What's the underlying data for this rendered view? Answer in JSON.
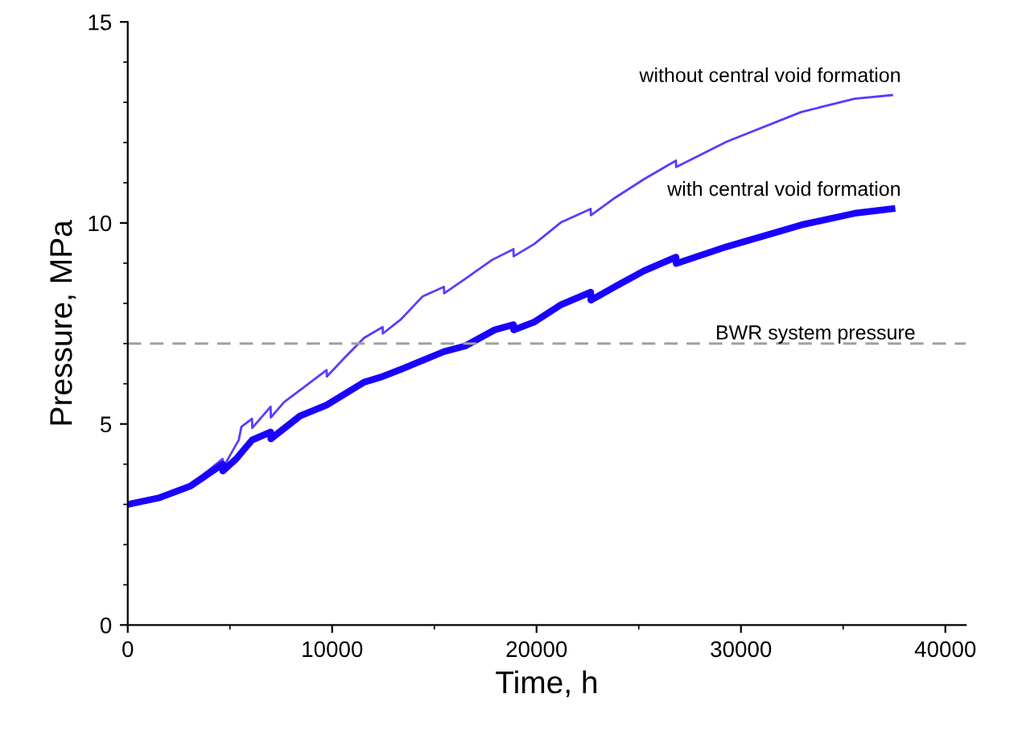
{
  "chart_data": {
    "type": "line",
    "xlabel": "Time, h",
    "ylabel": "Pressure, MPa",
    "xlim": [
      0,
      41000
    ],
    "xticks": [
      0,
      10000,
      20000,
      30000,
      40000
    ],
    "ylim": [
      0,
      15
    ],
    "yticks": [
      0,
      5,
      10,
      15
    ],
    "grid": false,
    "legend": false,
    "marker": "none",
    "series": [
      {
        "name": "without central void formation",
        "color": "#5a3cff",
        "line_style": "solid",
        "x": [
          0,
          1500,
          3000,
          4640,
          4700,
          5430,
          5560,
          6080,
          6090,
          6990,
          7000,
          7640,
          8690,
          9730,
          9740,
          10650,
          11560,
          12470,
          12480,
          13380,
          14420,
          15470,
          15480,
          16510,
          17820,
          18870,
          18880,
          19900,
          21210,
          22650,
          22660,
          23820,
          25260,
          26820,
          26830,
          29300,
          32950,
          35560,
          37390
        ],
        "values": [
          3.0,
          3.16,
          3.46,
          4.13,
          3.95,
          4.6,
          4.93,
          5.13,
          4.9,
          5.43,
          5.16,
          5.54,
          5.94,
          6.34,
          6.18,
          6.67,
          7.14,
          7.41,
          7.25,
          7.61,
          8.17,
          8.41,
          8.25,
          8.61,
          9.08,
          9.35,
          9.17,
          9.48,
          10.02,
          10.35,
          10.19,
          10.62,
          11.09,
          11.55,
          11.39,
          12.02,
          12.76,
          13.09,
          13.18
        ]
      },
      {
        "name": "with central void formation",
        "color": "#1a00ff",
        "line_style": "solid",
        "x": [
          0,
          1510,
          3080,
          4640,
          4650,
          5300,
          6080,
          6990,
          7000,
          8430,
          9730,
          11560,
          12470,
          13380,
          15470,
          16510,
          17950,
          18870,
          18880,
          19900,
          21210,
          22650,
          22660,
          23820,
          25260,
          26820,
          26830,
          29300,
          32950,
          35560,
          37390
        ],
        "values": [
          3.0,
          3.16,
          3.46,
          4.0,
          3.83,
          4.13,
          4.6,
          4.8,
          4.63,
          5.2,
          5.47,
          6.04,
          6.18,
          6.36,
          6.8,
          6.94,
          7.34,
          7.47,
          7.34,
          7.54,
          7.97,
          8.28,
          8.08,
          8.41,
          8.81,
          9.15,
          8.99,
          9.41,
          9.95,
          10.24,
          10.35
        ]
      }
    ],
    "ref_lines": [
      {
        "axis": "y",
        "value": 7,
        "label": "BWR system pressure",
        "color": "#a0a0a0",
        "line_style": "dashed"
      }
    ]
  }
}
